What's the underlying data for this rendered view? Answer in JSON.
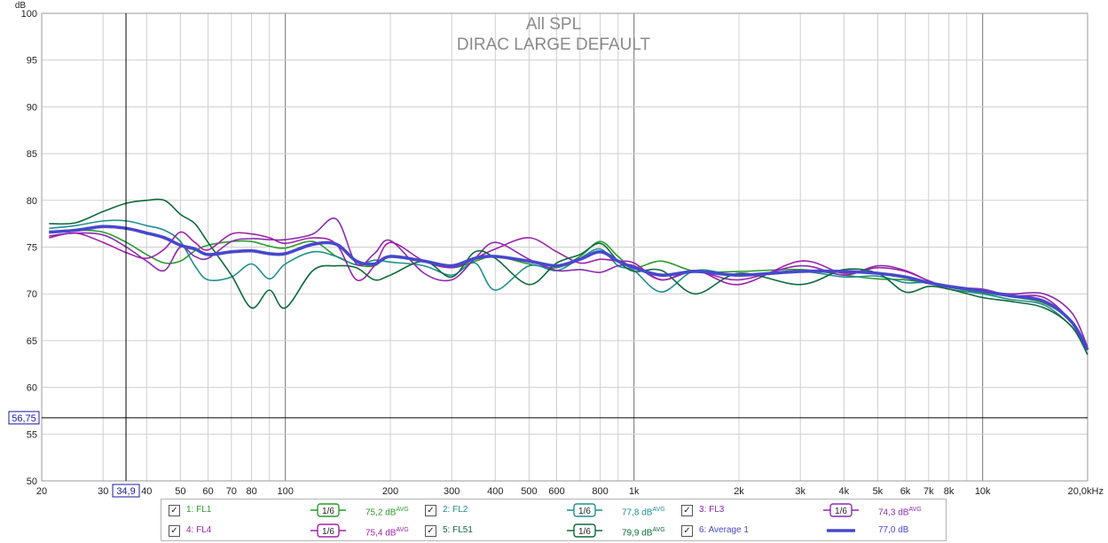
{
  "chart_data": {
    "type": "line",
    "title": "All SPL",
    "subtitle": "DIRAC LARGE DEFAULT",
    "ylabel": "dB",
    "xlabel": "",
    "x_scale": "log",
    "xlim": [
      20,
      20000
    ],
    "ylim": [
      50,
      100
    ],
    "y_ticks": [
      "50",
      "55",
      "60",
      "65",
      "70",
      "75",
      "80",
      "85",
      "90",
      "95",
      "100"
    ],
    "x_tick_labels": [
      {
        "f": 20,
        "label": "20"
      },
      {
        "f": 30,
        "label": "30"
      },
      {
        "f": 40,
        "label": "40"
      },
      {
        "f": 50,
        "label": "50"
      },
      {
        "f": 60,
        "label": "60"
      },
      {
        "f": 70,
        "label": "70"
      },
      {
        "f": 80,
        "label": "80"
      },
      {
        "f": 100,
        "label": "100"
      },
      {
        "f": 200,
        "label": "200"
      },
      {
        "f": 300,
        "label": "300"
      },
      {
        "f": 400,
        "label": "400"
      },
      {
        "f": 500,
        "label": "500"
      },
      {
        "f": 600,
        "label": "600"
      },
      {
        "f": 800,
        "label": "800"
      },
      {
        "f": 1000,
        "label": "1k"
      },
      {
        "f": 2000,
        "label": "2k"
      },
      {
        "f": 3000,
        "label": "3k"
      },
      {
        "f": 4000,
        "label": "4k"
      },
      {
        "f": 5000,
        "label": "5k"
      },
      {
        "f": 6000,
        "label": "6k"
      },
      {
        "f": 7000,
        "label": "7k"
      },
      {
        "f": 8000,
        "label": "8k"
      },
      {
        "f": 10000,
        "label": "10k"
      },
      {
        "f": 20000,
        "label": "20,0kHz"
      }
    ],
    "cursor": {
      "x": 34.9,
      "x_label": "34,9",
      "y": 56.75,
      "y_label": "56,75"
    },
    "series": [
      {
        "name": "FL1",
        "color": "#2a9a2a",
        "width": 1.6,
        "x": [
          21,
          25,
          30,
          35,
          40,
          45,
          50,
          55,
          60,
          70,
          80,
          90,
          100,
          120,
          140,
          160,
          180,
          200,
          250,
          300,
          350,
          400,
          500,
          600,
          700,
          800,
          900,
          1000,
          1200,
          1500,
          2000,
          3000,
          4000,
          5000,
          6000,
          7000,
          8000,
          10000,
          12000,
          15000,
          18000,
          20000
        ],
        "y": [
          76.5,
          76.8,
          76.6,
          75.5,
          74.2,
          73.3,
          73.5,
          74.6,
          75.2,
          75.6,
          75.6,
          75.1,
          74.9,
          75.6,
          74.0,
          73.1,
          73.0,
          74.0,
          73.5,
          72.8,
          73.5,
          74.0,
          73.2,
          72.8,
          74.0,
          75.6,
          74.0,
          72.8,
          73.5,
          72.4,
          72.4,
          72.6,
          72.0,
          71.6,
          71.5,
          71.1,
          70.7,
          70.1,
          69.7,
          69.0,
          67.0,
          64.0
        ]
      },
      {
        "name": "FL2",
        "color": "#1f8f8f",
        "width": 1.6,
        "x": [
          21,
          25,
          30,
          35,
          40,
          45,
          50,
          55,
          60,
          70,
          80,
          90,
          100,
          120,
          140,
          160,
          180,
          200,
          250,
          300,
          350,
          400,
          500,
          600,
          700,
          800,
          900,
          1000,
          1200,
          1500,
          2000,
          3000,
          4000,
          5000,
          6000,
          7000,
          8000,
          10000,
          12000,
          15000,
          18000,
          20000
        ],
        "y": [
          77.0,
          77.3,
          77.8,
          77.8,
          77.3,
          76.8,
          75.6,
          73.0,
          71.5,
          71.8,
          73.2,
          71.6,
          73.2,
          74.5,
          74.0,
          73.1,
          73.6,
          73.4,
          73.0,
          72.0,
          73.3,
          70.4,
          73.0,
          72.5,
          73.8,
          74.8,
          73.0,
          72.5,
          70.2,
          72.5,
          72.0,
          72.4,
          71.8,
          71.9,
          71.2,
          71.2,
          70.5,
          70.0,
          69.4,
          68.8,
          66.5,
          64.0
        ]
      },
      {
        "name": "FL3",
        "color": "#8a2ab0",
        "width": 1.6,
        "x": [
          21,
          25,
          30,
          35,
          40,
          45,
          50,
          55,
          60,
          70,
          80,
          90,
          100,
          120,
          140,
          160,
          180,
          200,
          250,
          300,
          350,
          400,
          500,
          600,
          700,
          800,
          900,
          1000,
          1200,
          1500,
          2000,
          3000,
          4000,
          5000,
          6000,
          7000,
          8000,
          10000,
          12000,
          15000,
          18000,
          20000
        ],
        "y": [
          76.2,
          76.5,
          76.3,
          75.0,
          73.5,
          72.5,
          75.0,
          74.0,
          73.8,
          75.6,
          75.9,
          75.8,
          75.8,
          76.4,
          78.0,
          73.2,
          74.3,
          75.7,
          72.2,
          71.5,
          73.8,
          75.5,
          73.7,
          72.5,
          72.6,
          72.3,
          73.0,
          73.0,
          71.5,
          72.4,
          71.5,
          73.0,
          72.0,
          73.0,
          72.5,
          71.4,
          70.7,
          70.3,
          70.0,
          70.0,
          68.0,
          64.3
        ]
      },
      {
        "name": "FL4",
        "color": "#a020a8",
        "width": 1.6,
        "x": [
          21,
          25,
          30,
          35,
          40,
          45,
          50,
          55,
          60,
          70,
          80,
          90,
          100,
          120,
          140,
          160,
          180,
          200,
          250,
          300,
          350,
          400,
          500,
          600,
          700,
          800,
          900,
          1000,
          1200,
          1500,
          2000,
          3000,
          4000,
          5000,
          6000,
          7000,
          8000,
          10000,
          12000,
          15000,
          18000,
          20000
        ],
        "y": [
          76.0,
          76.5,
          75.5,
          74.4,
          73.8,
          74.8,
          76.6,
          75.5,
          74.7,
          76.4,
          76.4,
          76.0,
          75.4,
          76.0,
          75.3,
          71.5,
          73.0,
          75.5,
          73.5,
          72.8,
          73.8,
          74.8,
          76.0,
          74.5,
          73.3,
          73.7,
          73.5,
          73.3,
          71.5,
          72.5,
          71.0,
          73.5,
          72.2,
          72.8,
          72.4,
          71.4,
          70.7,
          70.5,
          69.8,
          69.6,
          67.0,
          64.2
        ]
      },
      {
        "name": "FL51",
        "color": "#0e6a3a",
        "width": 1.6,
        "x": [
          21,
          25,
          30,
          35,
          40,
          45,
          50,
          55,
          60,
          70,
          80,
          90,
          100,
          120,
          140,
          160,
          180,
          200,
          250,
          300,
          350,
          400,
          500,
          600,
          700,
          800,
          900,
          1000,
          1200,
          1500,
          2000,
          3000,
          4000,
          5000,
          6000,
          7000,
          8000,
          10000,
          12000,
          15000,
          18000,
          20000
        ],
        "y": [
          77.5,
          77.6,
          78.8,
          79.7,
          80.0,
          80.0,
          78.5,
          77.5,
          75.5,
          72.0,
          68.5,
          70.4,
          68.5,
          72.5,
          73.0,
          72.8,
          71.5,
          72.0,
          73.5,
          71.8,
          74.5,
          73.8,
          71.0,
          73.3,
          74.2,
          75.4,
          73.5,
          72.4,
          72.5,
          70.0,
          72.2,
          71.0,
          72.6,
          72.2,
          70.2,
          70.8,
          70.5,
          69.6,
          69.2,
          68.5,
          66.5,
          63.5
        ]
      },
      {
        "name": "Average 1",
        "color": "#4848cc",
        "width": 3.6,
        "x": [
          21,
          25,
          30,
          35,
          40,
          45,
          50,
          55,
          60,
          70,
          80,
          90,
          100,
          120,
          140,
          160,
          180,
          200,
          250,
          300,
          350,
          400,
          500,
          600,
          700,
          800,
          900,
          1000,
          1200,
          1500,
          2000,
          3000,
          4000,
          5000,
          6000,
          7000,
          8000,
          10000,
          12000,
          15000,
          18000,
          20000
        ],
        "y": [
          76.6,
          76.8,
          77.2,
          77.0,
          76.5,
          76.0,
          75.2,
          74.8,
          74.2,
          74.5,
          74.6,
          74.3,
          74.3,
          75.3,
          75.3,
          73.5,
          73.2,
          74.0,
          73.5,
          73.0,
          73.8,
          74.0,
          73.5,
          73.0,
          73.7,
          74.5,
          73.5,
          72.8,
          72.0,
          72.4,
          72.0,
          72.4,
          72.4,
          72.2,
          71.8,
          71.2,
          70.8,
          70.3,
          69.8,
          69.2,
          67.0,
          64.0
        ]
      }
    ]
  },
  "legend": {
    "items": [
      {
        "label": "1: FL1",
        "smoothing": "1/6",
        "value": "75,2 dB",
        "value_sup": "AVG",
        "color": "#2a9a2a"
      },
      {
        "label": "2: FL2",
        "smoothing": "1/6",
        "value": "77,8 dB",
        "value_sup": "AVG",
        "color": "#1f8f8f"
      },
      {
        "label": "3: FL3",
        "smoothing": "1/6",
        "value": "74,3 dB",
        "value_sup": "AVG",
        "color": "#8a2ab0"
      },
      {
        "label": "4: FL4",
        "smoothing": "1/6",
        "value": "75,4 dB",
        "value_sup": "AVG",
        "color": "#a020a8"
      },
      {
        "label": "5: FL51",
        "smoothing": "1/6",
        "value": "79,9 dB",
        "value_sup": "AVG",
        "color": "#0e6a3a"
      },
      {
        "label": "6: Average 1",
        "smoothing": "",
        "value": "77,0 dB",
        "value_sup": "",
        "color": "#4848cc"
      }
    ]
  }
}
